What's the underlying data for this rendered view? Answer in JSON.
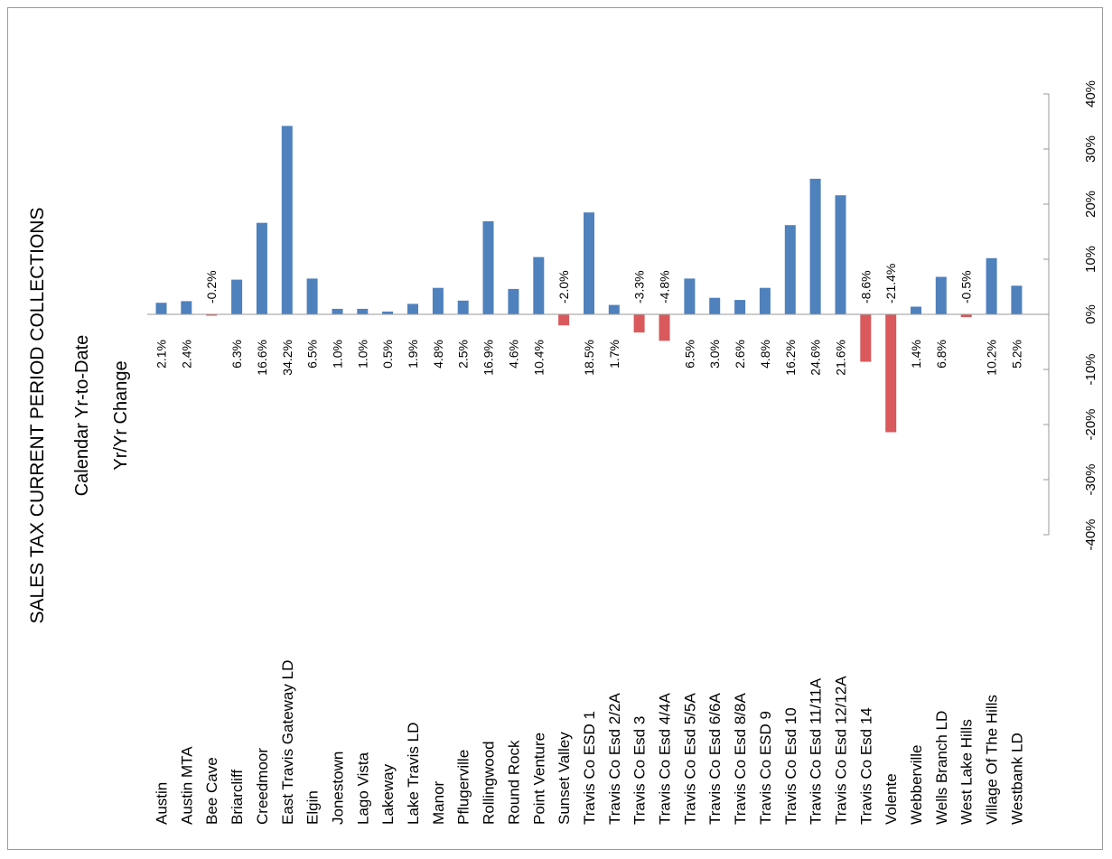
{
  "chart_data": {
    "type": "bar",
    "title": "SALES TAX CURRENT PERIOD COLLECTIONS",
    "subtitle": "Calendar Yr-to-Date",
    "subtitle2": "Yr/Yr Change",
    "categories": [
      "Austin",
      "Austin MTA",
      "Bee Cave",
      "Briarcliff",
      "Creedmoor",
      "East Travis Gateway LD",
      "Elgin",
      "Jonestown",
      "Lago Vista",
      "Lakeway",
      "Lake Travis LD",
      "Manor",
      "Pflugerville",
      "Rollingwood",
      "Round Rock",
      "Point Venture",
      "Sunset Valley",
      "Travis Co ESD 1",
      "Travis Co Esd 2/2A",
      "Travis Co Esd 3",
      "Travis Co Esd 4/4A",
      "Travis Co Esd 5/5A",
      "Travis Co Esd 6/6A",
      "Travis Co Esd 8/8A",
      "Travis Co ESD 9",
      "Travis Co Esd 10",
      "Travis Co Esd 11/11A",
      "Travis Co Esd 12/12A",
      "Travis Co Esd 14",
      "Volente",
      "Webberville",
      "Wells Branch LD",
      "West Lake Hills",
      "Village Of The Hills",
      "Westbank LD"
    ],
    "values": [
      2.1,
      2.4,
      -0.2,
      6.3,
      16.6,
      34.2,
      6.5,
      1.0,
      1.0,
      0.5,
      1.9,
      4.8,
      2.5,
      16.9,
      4.6,
      10.4,
      -2.0,
      18.5,
      1.7,
      -3.3,
      -4.8,
      6.5,
      3.0,
      2.6,
      4.8,
      16.2,
      24.6,
      21.6,
      -8.6,
      -21.4,
      1.4,
      6.8,
      -0.5,
      10.2,
      5.2
    ],
    "labels": [
      "2.1%",
      "2.4%",
      "-0.2%",
      "6.3%",
      "16.6%",
      "34.2%",
      "6.5%",
      "1.0%",
      "1.0%",
      "0.5%",
      "1.9%",
      "4.8%",
      "2.5%",
      "16.9%",
      "4.6%",
      "10.4%",
      "-2.0%",
      "18.5%",
      "1.7%",
      "-3.3%",
      "-4.8%",
      "6.5%",
      "3.0%",
      "2.6%",
      "4.8%",
      "16.2%",
      "24.6%",
      "21.6%",
      "-8.6%",
      "-21.4%",
      "1.4%",
      "6.8%",
      "-0.5%",
      "10.2%",
      "5.2%"
    ],
    "ylim": [
      -40,
      40
    ],
    "yticks": [
      "-40%",
      "-30%",
      "-20%",
      "-10%",
      "0%",
      "10%",
      "20%",
      "30%",
      "40%"
    ],
    "ytick_values": [
      -40,
      -30,
      -20,
      -10,
      0,
      10,
      20,
      30,
      40
    ],
    "colors": {
      "positive": "#4f81bd",
      "negative": "#d9595c"
    },
    "orientation": "rotated-90-ccw",
    "grid": false,
    "legend": "none"
  }
}
